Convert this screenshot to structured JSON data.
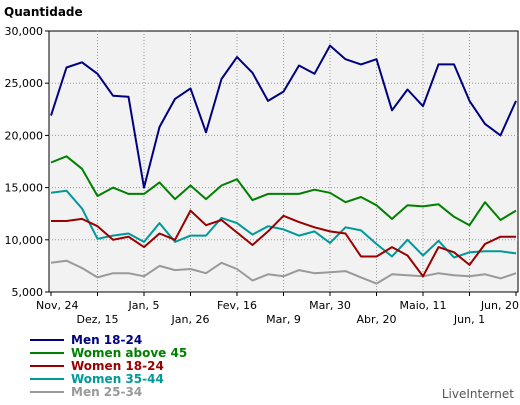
{
  "chart_data": {
    "type": "line",
    "ylabel": "Quantidade",
    "ylim": [
      5000,
      30000
    ],
    "yticks": [
      5000,
      10000,
      15000,
      20000,
      25000,
      30000
    ],
    "ytick_labels": [
      "5,000",
      "10,000",
      "15,000",
      "20,000",
      "25,000",
      "30,000"
    ],
    "xtick_labels": [
      {
        "index": 0,
        "label": "Nov, 24",
        "row": 1
      },
      {
        "index": 3,
        "label": "Dez, 15",
        "row": 2
      },
      {
        "index": 6,
        "label": "Jan, 5",
        "row": 1
      },
      {
        "index": 9,
        "label": "Jan, 26",
        "row": 2
      },
      {
        "index": 12,
        "label": "Fev, 16",
        "row": 1
      },
      {
        "index": 15,
        "label": "Mar, 9",
        "row": 2
      },
      {
        "index": 18,
        "label": "Mar, 30",
        "row": 1
      },
      {
        "index": 21,
        "label": "Abr, 20",
        "row": 2
      },
      {
        "index": 24,
        "label": "Maio, 11",
        "row": 1
      },
      {
        "index": 27,
        "label": "Jun, 1",
        "row": 2
      },
      {
        "index": 30,
        "label": "Jun, 20",
        "row": 1
      }
    ],
    "grid": true,
    "legend_position": "bottom-left",
    "series": [
      {
        "name": "Men 18-24",
        "color": "#000080",
        "values": [
          21900,
          26500,
          27000,
          25900,
          23800,
          23700,
          15000,
          20800,
          23500,
          24500,
          20300,
          25400,
          27500,
          26000,
          23300,
          24200,
          26700,
          25900,
          28600,
          27300,
          26800,
          27300,
          22400,
          24400,
          22800,
          26800,
          26800,
          23300,
          21100,
          20000,
          23300
        ]
      },
      {
        "name": "Women above 45",
        "color": "#008000",
        "values": [
          17400,
          18000,
          16800,
          14200,
          15000,
          14400,
          14400,
          15500,
          13900,
          15200,
          13900,
          15200,
          15800,
          13800,
          14400,
          14400,
          14400,
          14800,
          14500,
          13600,
          14100,
          13300,
          12000,
          13300,
          13200,
          13400,
          12200,
          11400,
          13600,
          11900,
          12800
        ]
      },
      {
        "name": "Women 18-24",
        "color": "#990000",
        "values": [
          11800,
          11800,
          12000,
          11300,
          10000,
          10300,
          9300,
          10600,
          10000,
          12800,
          11400,
          11900,
          10700,
          9500,
          10800,
          12300,
          11700,
          11200,
          10800,
          10600,
          8400,
          8400,
          9300,
          8500,
          6500,
          9300,
          8800,
          7600,
          9600,
          10300,
          10300
        ]
      },
      {
        "name": "Women 35-44",
        "color": "#009999",
        "values": [
          14500,
          14700,
          13000,
          10100,
          10400,
          10600,
          9800,
          11600,
          9800,
          10400,
          10400,
          12100,
          11600,
          10500,
          11300,
          11000,
          10400,
          10800,
          9700,
          11200,
          10900,
          9600,
          8400,
          10000,
          8500,
          9900,
          8300,
          8800,
          8900,
          8900,
          8700
        ]
      },
      {
        "name": "Men 25-34",
        "color": "#999999",
        "values": [
          7800,
          8000,
          7300,
          6400,
          6800,
          6800,
          6500,
          7500,
          7100,
          7200,
          6800,
          7800,
          7200,
          6100,
          6700,
          6500,
          7100,
          6800,
          6900,
          7000,
          6400,
          5800,
          6700,
          6600,
          6500,
          6800,
          6600,
          6500,
          6700,
          6300,
          6800
        ]
      }
    ]
  },
  "credit": "LiveInternet"
}
